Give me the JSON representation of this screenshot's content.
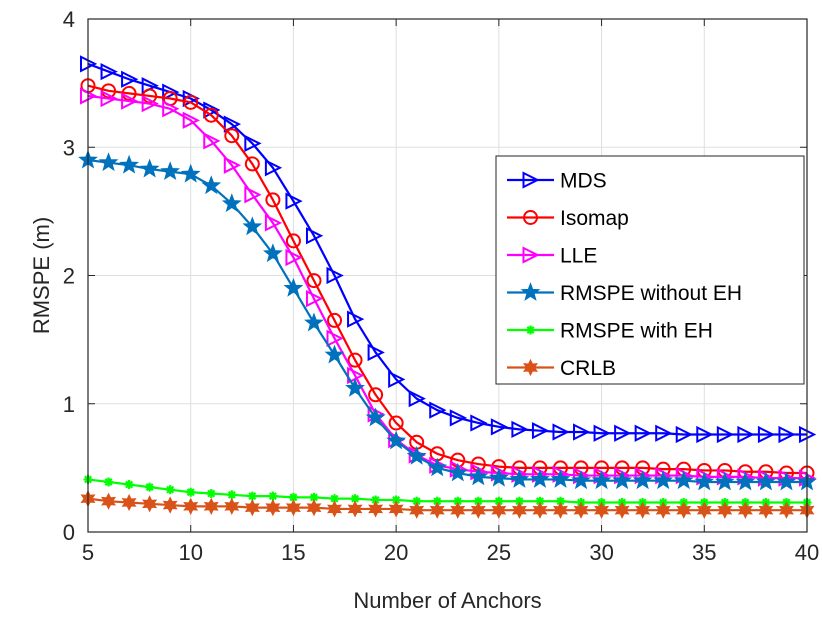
{
  "chart_data": {
    "type": "line",
    "title": "",
    "xlabel": "Number of Anchors",
    "ylabel": "RMSPE (m)",
    "xlim": [
      5,
      40
    ],
    "ylim": [
      0,
      4
    ],
    "xticks": [
      5,
      10,
      15,
      20,
      25,
      30,
      35,
      40
    ],
    "yticks": [
      0,
      1,
      2,
      3,
      4
    ],
    "grid": true,
    "legend_position": "right",
    "x": [
      5,
      6,
      7,
      8,
      9,
      10,
      11,
      12,
      13,
      14,
      15,
      16,
      17,
      18,
      19,
      20,
      21,
      22,
      23,
      24,
      25,
      26,
      27,
      28,
      29,
      30,
      31,
      32,
      33,
      34,
      35,
      36,
      37,
      38,
      39,
      40
    ],
    "series": [
      {
        "name": "MDS",
        "color": "#0000ff",
        "marker": "triangle-right",
        "values": [
          3.65,
          3.59,
          3.53,
          3.48,
          3.43,
          3.38,
          3.29,
          3.18,
          3.03,
          2.84,
          2.58,
          2.31,
          2.0,
          1.66,
          1.4,
          1.19,
          1.04,
          0.95,
          0.89,
          0.85,
          0.82,
          0.8,
          0.79,
          0.78,
          0.78,
          0.77,
          0.77,
          0.77,
          0.77,
          0.76,
          0.76,
          0.76,
          0.76,
          0.76,
          0.76,
          0.76
        ]
      },
      {
        "name": "Isomap",
        "color": "#ff0000",
        "marker": "circle",
        "values": [
          3.48,
          3.44,
          3.42,
          3.4,
          3.38,
          3.35,
          3.25,
          3.09,
          2.87,
          2.59,
          2.27,
          1.96,
          1.65,
          1.34,
          1.07,
          0.85,
          0.7,
          0.61,
          0.56,
          0.53,
          0.51,
          0.5,
          0.5,
          0.5,
          0.5,
          0.5,
          0.5,
          0.5,
          0.49,
          0.49,
          0.48,
          0.48,
          0.47,
          0.47,
          0.46,
          0.46
        ]
      },
      {
        "name": "LLE",
        "color": "#ff00ff",
        "marker": "triangle-right",
        "values": [
          3.4,
          3.38,
          3.36,
          3.34,
          3.3,
          3.21,
          3.05,
          2.86,
          2.63,
          2.41,
          2.14,
          1.82,
          1.51,
          1.22,
          0.92,
          0.72,
          0.6,
          0.52,
          0.49,
          0.47,
          0.46,
          0.45,
          0.45,
          0.45,
          0.44,
          0.44,
          0.44,
          0.44,
          0.44,
          0.44,
          0.43,
          0.43,
          0.43,
          0.42,
          0.42,
          0.42
        ]
      },
      {
        "name": "RMSPE without EH",
        "color": "#0072bd",
        "marker": "star",
        "values": [
          2.9,
          2.88,
          2.86,
          2.83,
          2.81,
          2.79,
          2.7,
          2.56,
          2.38,
          2.17,
          1.9,
          1.63,
          1.38,
          1.12,
          0.89,
          0.71,
          0.59,
          0.5,
          0.46,
          0.43,
          0.42,
          0.41,
          0.41,
          0.41,
          0.4,
          0.4,
          0.4,
          0.4,
          0.4,
          0.4,
          0.39,
          0.39,
          0.39,
          0.39,
          0.39,
          0.39
        ]
      },
      {
        "name": "RMSPE with EH",
        "color": "#00ff00",
        "marker": "asterisk",
        "values": [
          0.41,
          0.39,
          0.37,
          0.35,
          0.33,
          0.31,
          0.3,
          0.29,
          0.28,
          0.28,
          0.27,
          0.27,
          0.26,
          0.26,
          0.25,
          0.25,
          0.24,
          0.24,
          0.24,
          0.24,
          0.24,
          0.24,
          0.24,
          0.24,
          0.23,
          0.23,
          0.23,
          0.23,
          0.23,
          0.23,
          0.23,
          0.23,
          0.23,
          0.23,
          0.23,
          0.23
        ]
      },
      {
        "name": "CRLB",
        "color": "#d95319",
        "marker": "hexagram",
        "values": [
          0.26,
          0.24,
          0.23,
          0.22,
          0.21,
          0.2,
          0.2,
          0.2,
          0.19,
          0.19,
          0.19,
          0.19,
          0.18,
          0.18,
          0.18,
          0.18,
          0.17,
          0.17,
          0.17,
          0.17,
          0.17,
          0.17,
          0.17,
          0.17,
          0.17,
          0.17,
          0.17,
          0.17,
          0.17,
          0.17,
          0.17,
          0.17,
          0.17,
          0.17,
          0.17,
          0.17
        ]
      }
    ]
  }
}
